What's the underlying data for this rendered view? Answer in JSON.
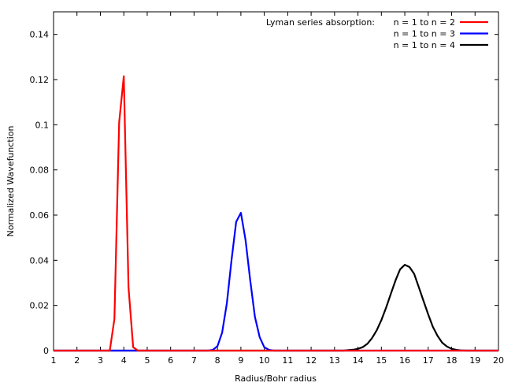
{
  "chart_data": {
    "type": "line",
    "title": "",
    "xlabel": "Radius/Bohr radius",
    "ylabel": "Normalized Wavefunction",
    "xlim": [
      1,
      20
    ],
    "ylim": [
      0,
      0.15
    ],
    "xticks": [
      "1",
      "2",
      "3",
      "4",
      "5",
      "6",
      "7",
      "8",
      "9",
      "10",
      "11",
      "12",
      "13",
      "14",
      "15",
      "16",
      "17",
      "18",
      "19",
      "20"
    ],
    "yticks": [
      "0",
      "0.02",
      "0.04",
      "0.06",
      "0.08",
      "0.1",
      "0.12",
      "0.14"
    ],
    "grid": false,
    "legend_position": "top-right",
    "legend_title": "Lyman series absorption:",
    "series": [
      {
        "name": "n = 1 to n = 2",
        "color": "#ff0000",
        "x": [
          1,
          3.4,
          3.6,
          3.8,
          4.0,
          4.2,
          4.4,
          4.6,
          20
        ],
        "y": [
          0,
          0,
          0.014,
          0.101,
          0.1215,
          0.028,
          0.0015,
          0,
          0
        ]
      },
      {
        "name": "n = 1 to n = 3",
        "color": "#0000ff",
        "x": [
          1,
          7.6,
          7.8,
          8.0,
          8.2,
          8.4,
          8.6,
          8.8,
          9.0,
          9.2,
          9.4,
          9.6,
          9.8,
          10.0,
          10.2,
          10.4,
          20
        ],
        "y": [
          0,
          0,
          0.0003,
          0.002,
          0.008,
          0.021,
          0.04,
          0.057,
          0.061,
          0.049,
          0.031,
          0.015,
          0.006,
          0.0015,
          0.0003,
          0,
          0
        ]
      },
      {
        "name": "n = 1 to n = 4",
        "color": "#000000",
        "x": [
          1,
          13.4,
          13.6,
          13.8,
          14.0,
          14.2,
          14.4,
          14.6,
          14.8,
          15.0,
          15.2,
          15.4,
          15.6,
          15.8,
          16.0,
          16.2,
          16.4,
          16.6,
          16.8,
          17.0,
          17.2,
          17.4,
          17.6,
          17.8,
          18.0,
          18.2,
          18.4,
          18.6,
          20
        ],
        "y": [
          0,
          0,
          0.0002,
          0.0004,
          0.0008,
          0.0015,
          0.003,
          0.0055,
          0.009,
          0.0135,
          0.019,
          0.025,
          0.031,
          0.036,
          0.038,
          0.037,
          0.034,
          0.028,
          0.022,
          0.016,
          0.0105,
          0.0065,
          0.0035,
          0.0018,
          0.0008,
          0.0003,
          0.0001,
          0,
          0
        ]
      }
    ]
  }
}
